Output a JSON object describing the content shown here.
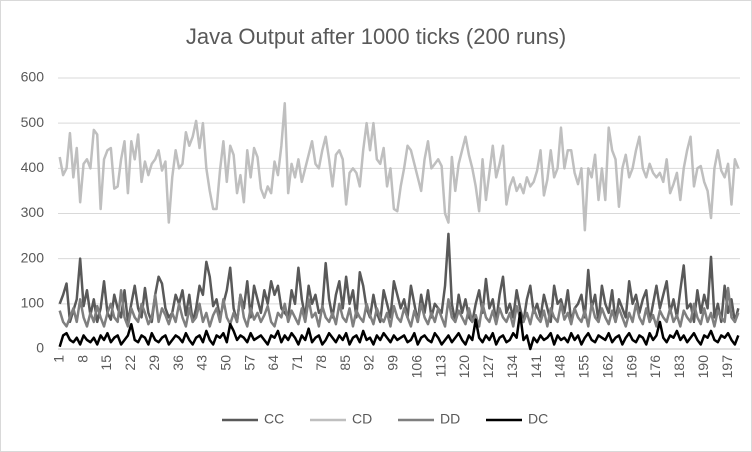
{
  "chart_data": {
    "type": "line",
    "title": "Java Output after 1000 ticks (200 runs)",
    "x": [
      1,
      2,
      3,
      4,
      5,
      6,
      7,
      8,
      9,
      10,
      11,
      12,
      13,
      14,
      15,
      16,
      17,
      18,
      19,
      20,
      21,
      22,
      23,
      24,
      25,
      26,
      27,
      28,
      29,
      30,
      31,
      32,
      33,
      34,
      35,
      36,
      37,
      38,
      39,
      40,
      41,
      42,
      43,
      44,
      45,
      46,
      47,
      48,
      49,
      50,
      51,
      52,
      53,
      54,
      55,
      56,
      57,
      58,
      59,
      60,
      61,
      62,
      63,
      64,
      65,
      66,
      67,
      68,
      69,
      70,
      71,
      72,
      73,
      74,
      75,
      76,
      77,
      78,
      79,
      80,
      81,
      82,
      83,
      84,
      85,
      86,
      87,
      88,
      89,
      90,
      91,
      92,
      93,
      94,
      95,
      96,
      97,
      98,
      99,
      100,
      101,
      102,
      103,
      104,
      105,
      106,
      107,
      108,
      109,
      110,
      111,
      112,
      113,
      114,
      115,
      116,
      117,
      118,
      119,
      120,
      121,
      122,
      123,
      124,
      125,
      126,
      127,
      128,
      129,
      130,
      131,
      132,
      133,
      134,
      135,
      136,
      137,
      138,
      139,
      140,
      141,
      142,
      143,
      144,
      145,
      146,
      147,
      148,
      149,
      150,
      151,
      152,
      153,
      154,
      155,
      156,
      157,
      158,
      159,
      160,
      161,
      162,
      163,
      164,
      165,
      166,
      167,
      168,
      169,
      170,
      171,
      172,
      173,
      174,
      175,
      176,
      177,
      178,
      179,
      180,
      181,
      182,
      183,
      184,
      185,
      186,
      187,
      188,
      189,
      190,
      191,
      192,
      193,
      194,
      195,
      196,
      197,
      198,
      199,
      200
    ],
    "xlim": [
      0.5,
      200.5
    ],
    "xticks": [
      1,
      8,
      15,
      22,
      29,
      36,
      43,
      50,
      57,
      64,
      71,
      78,
      85,
      92,
      99,
      106,
      113,
      120,
      127,
      134,
      141,
      148,
      155,
      162,
      169,
      176,
      183,
      190,
      197
    ],
    "ylim": [
      0,
      600
    ],
    "yticks": [
      0,
      100,
      200,
      300,
      400,
      500,
      600
    ],
    "grid": true,
    "legend": "bottom",
    "series": [
      {
        "name": "CC",
        "color": "#595959",
        "values": [
          100,
          120,
          145,
          60,
          85,
          110,
          200,
          95,
          130,
          75,
          110,
          60,
          90,
          150,
          80,
          65,
          120,
          90,
          70,
          130,
          60,
          100,
          140,
          90,
          70,
          135,
          80,
          60,
          120,
          160,
          145,
          90,
          70,
          80,
          120,
          100,
          130,
          75,
          120,
          60,
          90,
          140,
          120,
          193,
          160,
          95,
          110,
          70,
          100,
          130,
          180,
          90,
          60,
          120,
          90,
          150,
          70,
          140,
          110,
          80,
          130,
          100,
          150,
          120,
          140,
          90,
          80,
          70,
          130,
          100,
          180,
          110,
          70,
          140,
          100,
          120,
          80,
          90,
          190,
          110,
          70,
          120,
          150,
          90,
          160,
          100,
          130,
          70,
          170,
          140,
          90,
          70,
          120,
          80,
          60,
          130,
          100,
          70,
          150,
          120,
          90,
          110,
          70,
          140,
          100,
          60,
          120,
          80,
          130,
          70,
          100,
          90,
          80,
          140,
          255,
          100,
          60,
          120,
          80,
          110,
          70,
          60,
          100,
          130,
          80,
          155,
          90,
          110,
          60,
          120,
          160,
          80,
          100,
          70,
          130,
          90,
          60,
          110,
          140,
          80,
          100,
          70,
          120,
          90,
          60,
          140,
          100,
          110,
          80,
          130,
          60,
          90,
          100,
          120,
          70,
          175,
          90,
          120,
          60,
          140,
          100,
          80,
          130,
          60,
          110,
          90,
          70,
          150,
          100,
          120,
          80,
          110,
          130,
          60,
          100,
          140,
          90,
          120,
          150,
          80,
          110,
          70,
          130,
          185,
          90,
          100,
          60,
          130,
          80,
          120,
          90,
          204,
          70,
          100,
          60,
          140,
          80,
          110,
          60,
          90
        ]
      },
      {
        "name": "CD",
        "color": "#bfbfbf",
        "values": [
          425,
          385,
          400,
          478,
          380,
          445,
          325,
          410,
          420,
          400,
          485,
          475,
          310,
          420,
          440,
          445,
          355,
          360,
          420,
          460,
          345,
          460,
          420,
          475,
          370,
          415,
          385,
          410,
          420,
          440,
          395,
          415,
          280,
          380,
          440,
          400,
          410,
          480,
          450,
          470,
          505,
          445,
          500,
          400,
          350,
          310,
          310,
          395,
          460,
          370,
          450,
          430,
          345,
          385,
          325,
          440,
          380,
          445,
          425,
          355,
          335,
          360,
          345,
          415,
          385,
          450,
          544,
          345,
          410,
          380,
          420,
          370,
          400,
          430,
          460,
          410,
          400,
          440,
          470,
          420,
          360,
          430,
          440,
          420,
          320,
          390,
          400,
          390,
          360,
          440,
          500,
          440,
          500,
          420,
          410,
          445,
          360,
          400,
          310,
          305,
          360,
          400,
          450,
          440,
          410,
          380,
          350,
          420,
          460,
          400,
          410,
          420,
          405,
          300,
          280,
          425,
          350,
          410,
          440,
          470,
          430,
          400,
          360,
          305,
          420,
          330,
          390,
          450,
          380,
          410,
          450,
          320,
          360,
          380,
          350,
          365,
          345,
          380,
          360,
          370,
          395,
          440,
          340,
          375,
          440,
          380,
          400,
          490,
          400,
          440,
          440,
          390,
          365,
          400,
          263,
          400,
          380,
          430,
          330,
          400,
          330,
          490,
          440,
          420,
          315,
          400,
          430,
          380,
          400,
          440,
          470,
          400,
          380,
          410,
          390,
          380,
          390,
          370,
          420,
          345,
          365,
          390,
          330,
          400,
          440,
          470,
          360,
          400,
          405,
          370,
          350,
          290,
          400,
          440,
          395,
          380,
          410,
          320,
          420,
          400
        ]
      },
      {
        "name": "DD",
        "color": "#7f7f7f",
        "values": [
          85,
          60,
          50,
          70,
          90,
          60,
          110,
          70,
          50,
          80,
          60,
          95,
          70,
          50,
          80,
          100,
          70,
          60,
          130,
          70,
          50,
          90,
          70,
          60,
          100,
          80,
          55,
          70,
          120,
          60,
          90,
          75,
          55,
          80,
          60,
          100,
          70,
          50,
          90,
          60,
          70,
          100,
          60,
          80,
          50,
          75,
          90,
          60,
          110,
          70,
          55,
          80,
          60,
          120,
          70,
          50,
          90,
          65,
          80,
          60,
          75,
          95,
          60,
          50,
          80,
          70,
          100,
          60,
          85,
          70,
          55,
          90,
          60,
          110,
          70,
          80,
          50,
          95,
          70,
          60,
          80,
          55,
          100,
          70,
          60,
          90,
          50,
          85,
          70,
          60,
          100,
          75,
          55,
          90,
          70,
          60,
          80,
          50,
          95,
          70,
          60,
          90,
          70,
          50,
          85,
          60,
          100,
          70,
          55,
          80,
          60,
          90,
          70,
          50,
          110,
          70,
          60,
          85,
          70,
          55,
          90,
          60,
          75,
          50,
          100,
          70,
          60,
          85,
          55,
          90,
          70,
          60,
          80,
          50,
          95,
          70,
          60,
          80,
          55,
          90,
          70,
          60,
          85,
          50,
          90,
          70,
          60,
          100,
          65,
          80,
          55,
          90,
          70,
          60,
          85,
          50,
          100,
          70,
          60,
          90,
          70,
          55,
          85,
          60,
          90,
          70,
          50,
          80,
          60,
          100,
          70,
          55,
          90,
          60,
          75,
          50,
          85,
          70,
          60,
          90,
          60,
          75,
          50,
          85,
          70,
          60,
          100,
          70,
          55,
          90,
          60,
          80,
          50,
          85,
          70,
          60,
          135,
          70,
          60,
          80
        ]
      },
      {
        "name": "DC",
        "color": "#000000",
        "values": [
          5,
          30,
          35,
          20,
          15,
          25,
          10,
          30,
          20,
          15,
          25,
          10,
          30,
          20,
          35,
          15,
          25,
          30,
          10,
          20,
          30,
          55,
          20,
          15,
          30,
          25,
          10,
          35,
          20,
          15,
          25,
          30,
          10,
          20,
          30,
          25,
          15,
          35,
          20,
          10,
          25,
          30,
          15,
          40,
          20,
          10,
          30,
          25,
          35,
          15,
          55,
          40,
          20,
          30,
          25,
          15,
          35,
          20,
          25,
          30,
          20,
          10,
          30,
          25,
          40,
          15,
          30,
          20,
          35,
          25,
          10,
          30,
          20,
          45,
          15,
          25,
          30,
          10,
          20,
          35,
          25,
          15,
          30,
          20,
          35,
          10,
          25,
          30,
          15,
          40,
          20,
          25,
          10,
          30,
          20,
          35,
          25,
          15,
          30,
          20,
          25,
          30,
          15,
          20,
          35,
          10,
          25,
          30,
          20,
          15,
          35,
          25,
          10,
          20,
          30,
          15,
          25,
          35,
          20,
          10,
          30,
          20,
          65,
          25,
          15,
          30,
          20,
          35,
          10,
          25,
          30,
          15,
          20,
          35,
          25,
          80,
          20,
          30,
          0,
          25,
          15,
          30,
          20,
          25,
          35,
          10,
          30,
          20,
          25,
          15,
          35,
          20,
          30,
          10,
          25,
          35,
          20,
          15,
          30,
          25,
          20,
          35,
          15,
          25,
          30,
          10,
          25,
          35,
          20,
          15,
          30,
          25,
          10,
          35,
          20,
          30,
          60,
          25,
          15,
          30,
          25,
          40,
          20,
          30,
          15,
          25,
          35,
          20,
          10,
          30,
          25,
          40,
          20,
          15,
          30,
          25,
          35,
          20,
          10,
          30
        ]
      }
    ]
  }
}
